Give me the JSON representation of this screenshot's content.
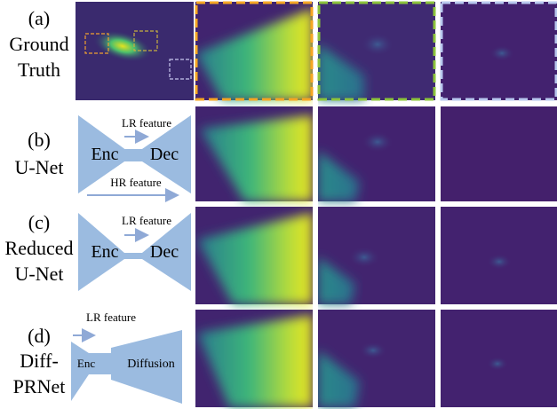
{
  "rows": [
    {
      "label": [
        "(a)",
        "Ground",
        "Truth"
      ]
    },
    {
      "label": [
        "(b)",
        "U-Net"
      ],
      "diagram": {
        "encoder": "Enc",
        "decoder": "Dec",
        "skip": "LR feature",
        "feature": "HR feature"
      }
    },
    {
      "label": [
        "(c)",
        "Reduced",
        "U-Net"
      ],
      "diagram": {
        "encoder": "Enc",
        "decoder": "Dec",
        "skip": "LR feature"
      }
    },
    {
      "label": [
        "(d)",
        "Diff-",
        "PRNet"
      ],
      "diagram": {
        "encoder": "Enc",
        "decoder": "Diffusion",
        "skip": "LR feature"
      }
    }
  ]
}
